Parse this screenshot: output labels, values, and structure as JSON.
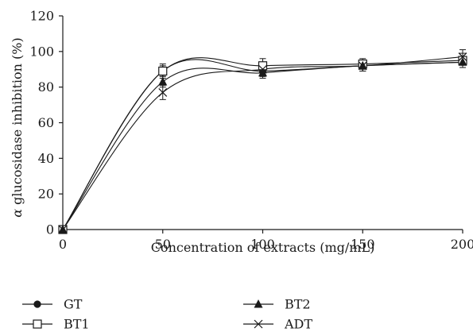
{
  "chart_data": {
    "type": "line",
    "xlabel": "Concentration of extracts (mg/mL)",
    "ylabel": "α glucosidase inhibition (%)",
    "x": [
      0,
      50,
      100,
      150,
      200
    ],
    "xticks": [
      "0",
      "50",
      "100",
      "150",
      "200"
    ],
    "yticks": [
      "0",
      "20",
      "40",
      "60",
      "80",
      "100",
      "120"
    ],
    "xlim": [
      0,
      200
    ],
    "ylim": [
      0,
      120
    ],
    "grid": false,
    "legend_position": "bottom",
    "series": [
      {
        "name": "GT",
        "marker": "filled-circle",
        "values": [
          0,
          89,
          89,
          92,
          94
        ],
        "errors": [
          0,
          3,
          3,
          3,
          3
        ]
      },
      {
        "name": "BT1",
        "marker": "open-square",
        "values": [
          0,
          89,
          92,
          93,
          95
        ],
        "errors": [
          0,
          4,
          4,
          3,
          4
        ]
      },
      {
        "name": "BT2",
        "marker": "filled-triangle",
        "values": [
          0,
          83,
          88,
          92,
          94
        ],
        "errors": [
          0,
          3,
          3,
          3,
          3
        ]
      },
      {
        "name": "ADT",
        "marker": "x-cross",
        "values": [
          0,
          77,
          90,
          92,
          97
        ],
        "errors": [
          0,
          4,
          4,
          3,
          4
        ]
      }
    ]
  }
}
